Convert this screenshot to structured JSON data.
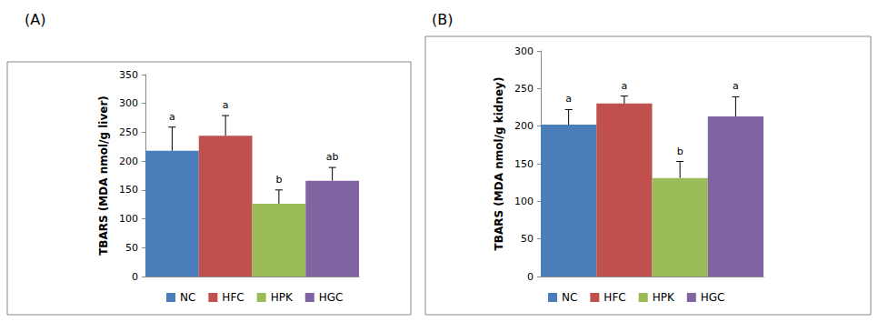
{
  "chart_data": [
    {
      "type": "bar",
      "title": "(A)",
      "y_label": "TBARS (MDA nmol/g liver)",
      "categories": [
        "NC",
        "HFC",
        "HPK",
        "HGC"
      ],
      "values": [
        218,
        244,
        126,
        166
      ],
      "errors": [
        41,
        35,
        24,
        23
      ],
      "letters": [
        "a",
        "a",
        "b",
        "ab"
      ],
      "colors": [
        "#4a7ebb",
        "#c0504d",
        "#9bbb59",
        "#8064a2"
      ],
      "ylim": [
        0,
        350
      ],
      "yticks": [
        0,
        50,
        100,
        150,
        200,
        250,
        300,
        350
      ],
      "grid": false,
      "legend": "bottom",
      "tick_labels": "y"
    },
    {
      "type": "bar",
      "title": "(B)",
      "y_label": "TBARS (MDA nmol/g kidney)",
      "categories": [
        "NC",
        "HFC",
        "HPK",
        "HGC"
      ],
      "values": [
        202,
        230,
        131,
        213
      ],
      "errors": [
        20,
        10,
        22,
        26
      ],
      "letters": [
        "a",
        "a",
        "b",
        "a"
      ],
      "colors": [
        "#4a7ebb",
        "#c0504d",
        "#9bbb59",
        "#8064a2"
      ],
      "ylim": [
        0,
        300
      ],
      "yticks": [
        0,
        50,
        100,
        150,
        200,
        250,
        300
      ],
      "grid": false,
      "legend": "bottom",
      "tick_labels": "y"
    }
  ]
}
